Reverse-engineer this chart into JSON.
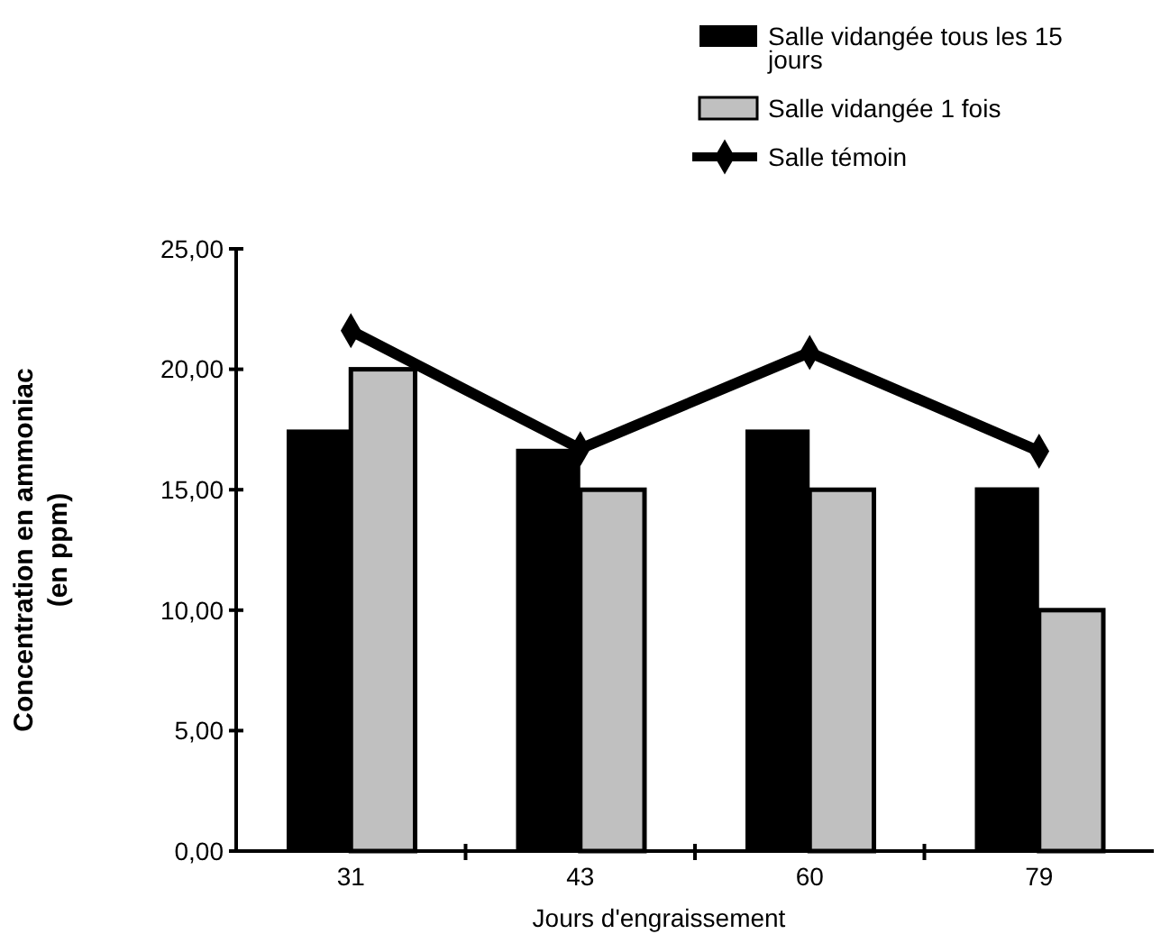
{
  "chart_data": {
    "type": "bar",
    "xlabel": "Jours d'engraissement",
    "ylabel": "Concentration en ammoniac (en ppm)",
    "categories": [
      "31",
      "43",
      "60",
      "79"
    ],
    "series": [
      {
        "name": "Salle vidangée tous les 15 jours",
        "color": "#000000",
        "values": [
          17.5,
          16.7,
          17.5,
          15.1
        ]
      },
      {
        "name": "Salle vidangée 1 fois",
        "color": "#c0c0c0",
        "values": [
          20,
          15,
          15,
          10
        ]
      },
      {
        "name": "Salle témoin",
        "type": "line",
        "color": "#000000",
        "marker": "diamond",
        "values": [
          21.6,
          16.7,
          20.7,
          16.6
        ]
      }
    ],
    "ylim": [
      0,
      25
    ],
    "yticks": [
      {
        "value": 0,
        "label": "0,00"
      },
      {
        "value": 5,
        "label": "5,00"
      },
      {
        "value": 10,
        "label": "10,00"
      },
      {
        "value": 15,
        "label": "15,00"
      },
      {
        "value": 20,
        "label": "20,00"
      },
      {
        "value": 25,
        "label": "25,00"
      }
    ],
    "legend": "top right"
  }
}
